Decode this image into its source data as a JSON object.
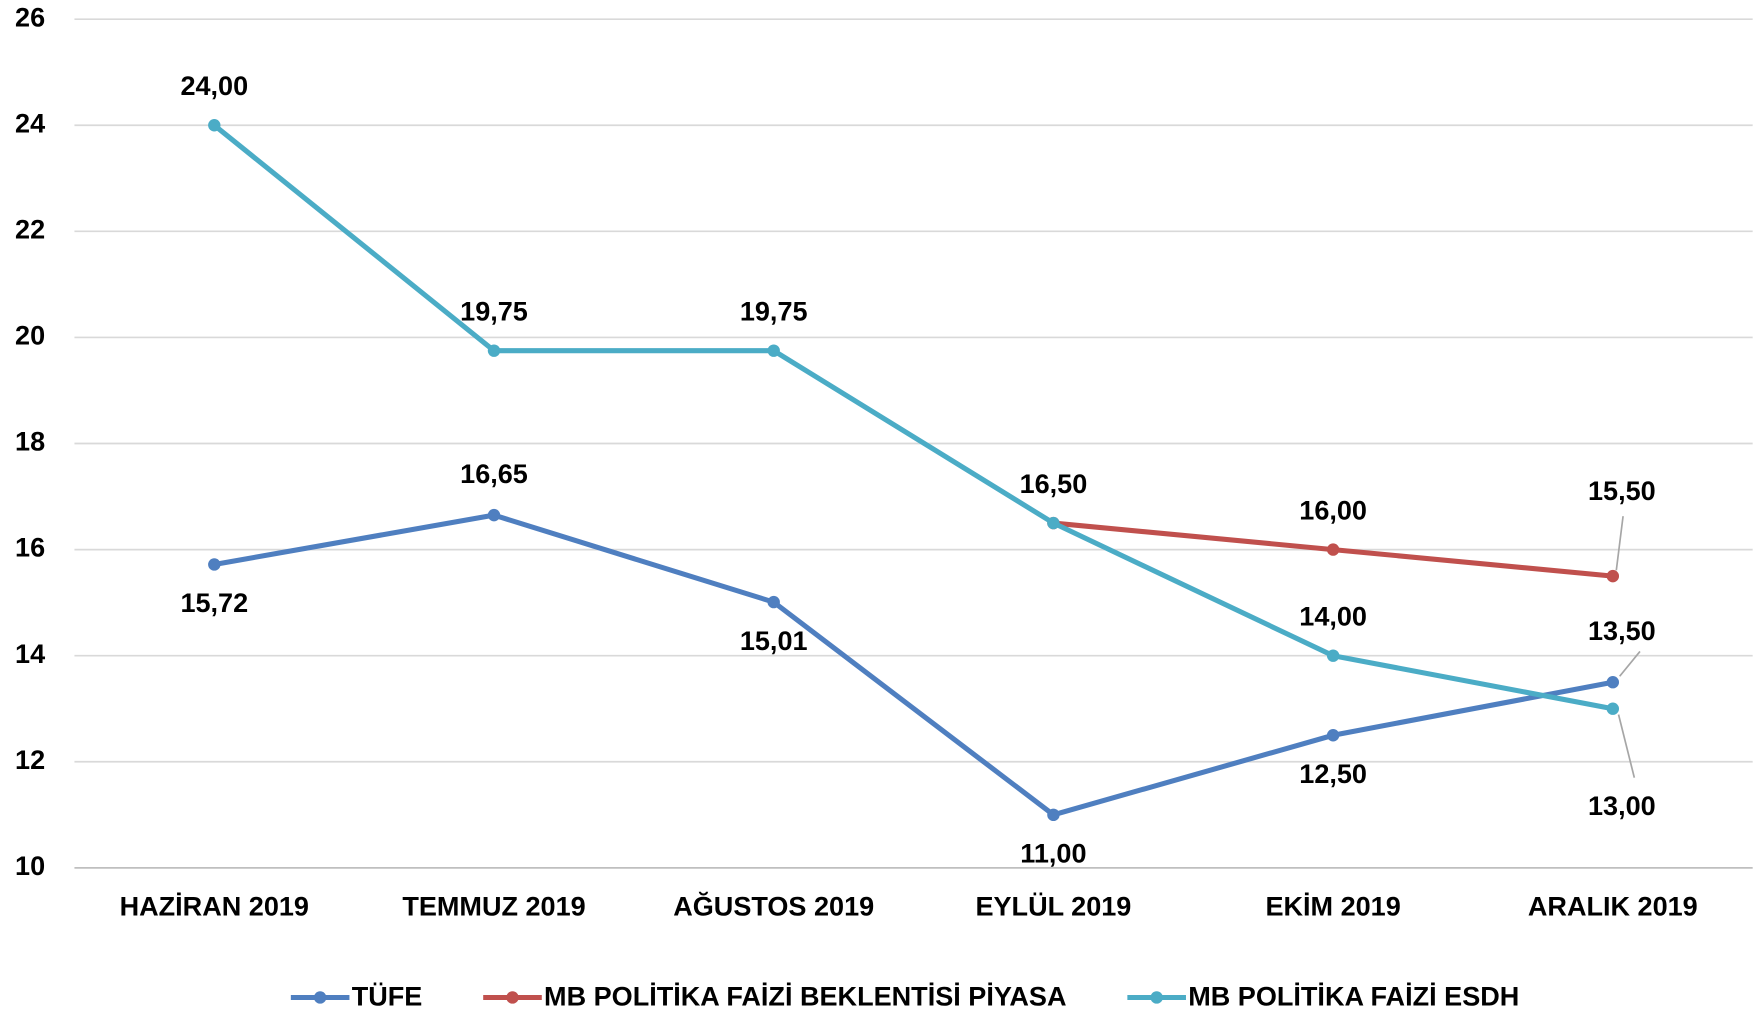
{
  "chart_data": {
    "type": "line",
    "categories": [
      "HAZİRAN 2019",
      "TEMMUZ 2019",
      "AĞUSTOS 2019",
      "EYLÜL 2019",
      "EKİM 2019",
      "ARALIK 2019"
    ],
    "series": [
      {
        "name": "TÜFE",
        "color": "#4f7fc0",
        "values": [
          15.72,
          16.65,
          15.01,
          11.0,
          12.5,
          13.5
        ],
        "value_labels": [
          "15,72",
          "16,65",
          "15,01",
          "11,00",
          "12,50",
          "13,50"
        ]
      },
      {
        "name": "MB POLİTİKA FAİZİ BEKLENTİSİ PİYASA",
        "color": "#c0504d",
        "values": [
          null,
          null,
          null,
          16.5,
          16.0,
          15.5
        ],
        "value_labels": [
          null,
          null,
          null,
          null,
          "16,00",
          "15,50"
        ]
      },
      {
        "name": "MB POLİTİKA FAİZİ ESDH",
        "color": "#4bacc6",
        "values": [
          24.0,
          19.75,
          19.75,
          16.5,
          14.0,
          13.0
        ],
        "value_labels": [
          "24,00",
          "19,75",
          "19,75",
          "16,50",
          "14,00",
          "13,00"
        ]
      }
    ],
    "ylim": [
      10,
      26
    ],
    "yticks": [
      10,
      12,
      14,
      16,
      18,
      20,
      22,
      24,
      26
    ],
    "grid": true,
    "legend": "bottom"
  }
}
